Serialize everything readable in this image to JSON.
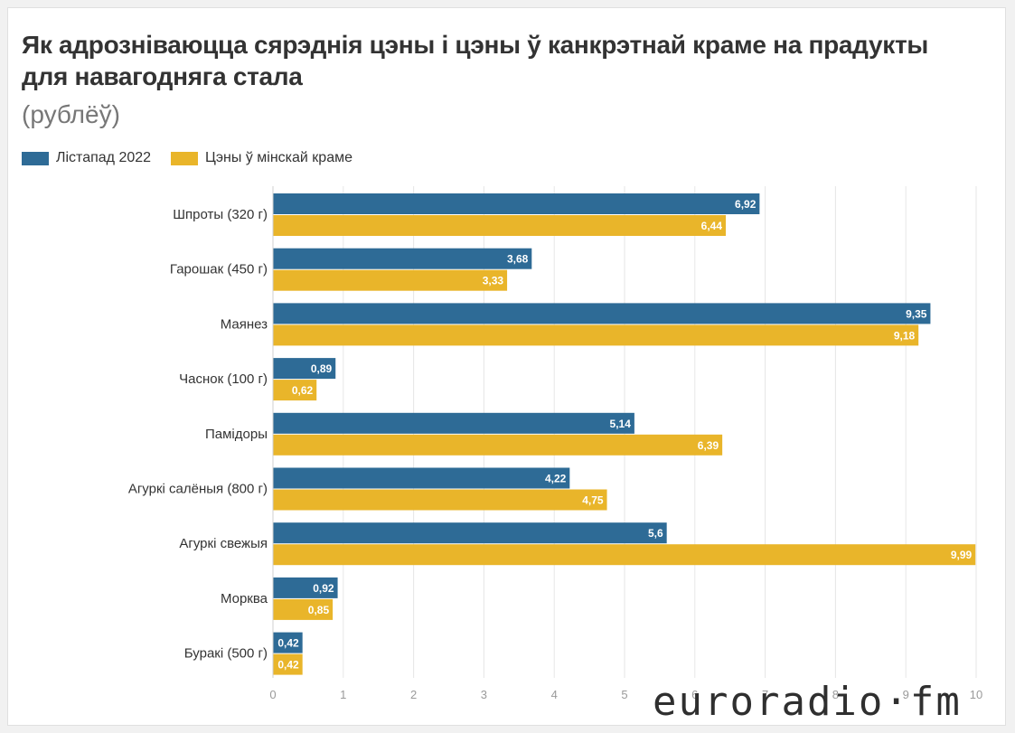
{
  "chart_title": "Як адрозніваюцца сярэднія цэны і цэны ў канкрэтнай краме на прадукты для навагодняга стала",
  "chart_subtitle": "(рублёў)",
  "watermark": "euroradio·fm",
  "colors": {
    "series_1": "#2e6b96",
    "series_2": "#e9b52a"
  },
  "chart_data": {
    "type": "bar",
    "orientation": "horizontal",
    "title": "Як адрозніваюцца сярэднія цэны і цэны ў канкрэтнай краме на прадукты для навагодняга стала",
    "subtitle": "(рублёў)",
    "xlabel": "",
    "ylabel": "",
    "xlim": [
      0,
      10
    ],
    "x_ticks": [
      "0",
      "1",
      "2",
      "3",
      "4",
      "5",
      "6",
      "7",
      "8",
      "9",
      "10"
    ],
    "grid": true,
    "legend_position": "top-left",
    "categories": [
      "Шпроты (320 г)",
      "Гарошак (450 г)",
      "Маянез",
      "Часнок (100 г)",
      "Памідоры",
      "Агуркі салёныя (800 г)",
      "Агуркі свежыя",
      "Морква",
      "Буракі (500 г)"
    ],
    "series": [
      {
        "name": "Лістапад 2022",
        "values": [
          6.92,
          3.68,
          9.35,
          0.89,
          5.14,
          4.22,
          5.6,
          0.92,
          0.42
        ],
        "labels": [
          "6,92",
          "3,68",
          "9,35",
          "0,89",
          "5,14",
          "4,22",
          "5,6",
          "0,92",
          "0,42"
        ]
      },
      {
        "name": "Цэны ў мінскай краме",
        "values": [
          6.44,
          3.33,
          9.18,
          0.62,
          6.39,
          4.75,
          9.99,
          0.85,
          0.42
        ],
        "labels": [
          "6,44",
          "3,33",
          "9,18",
          "0,62",
          "6,39",
          "4,75",
          "9,99",
          "0,85",
          "0,42"
        ]
      }
    ]
  }
}
